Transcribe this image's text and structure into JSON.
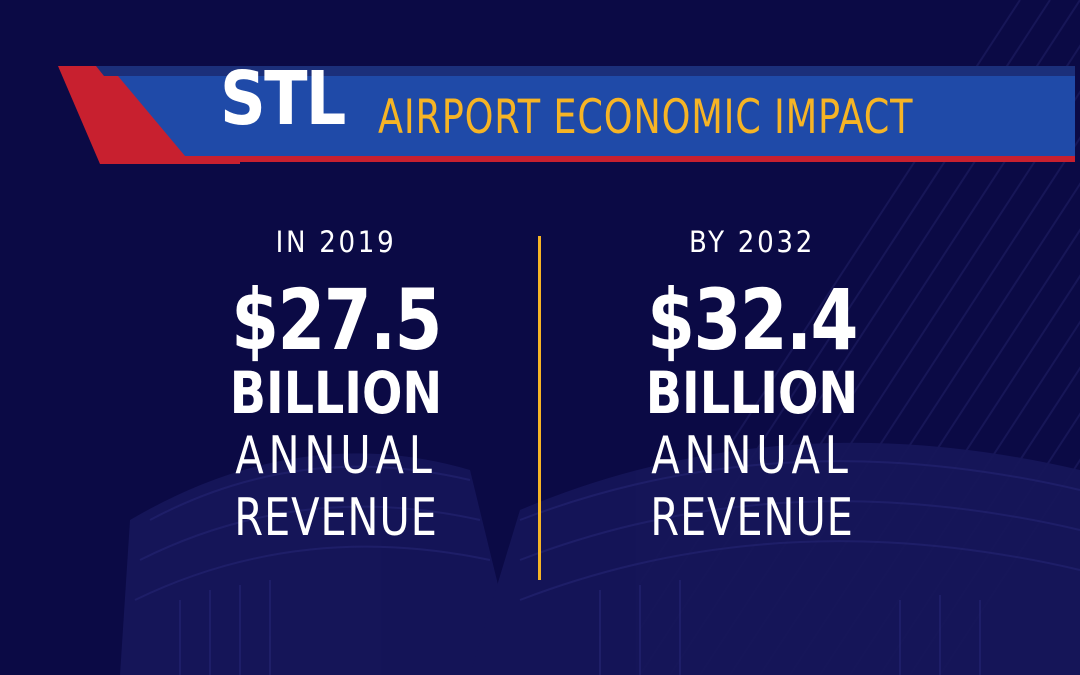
{
  "title": {
    "brand": "STL",
    "subtitle": "AIRPORT ECONOMIC IMPACT"
  },
  "stats": [
    {
      "period": "IN 2019",
      "amount": "$27.5",
      "unit": "BILLION",
      "desc_line1": "ANNUAL",
      "desc_line2": "REVENUE"
    },
    {
      "period": "BY 2032",
      "amount": "$32.4",
      "unit": "BILLION",
      "desc_line1": "ANNUAL",
      "desc_line2": "REVENUE"
    }
  ],
  "colors": {
    "background": "#0b0a45",
    "accent_gold": "#f6b425",
    "banner_blue": "#1f4aa8",
    "banner_red": "#c8202f",
    "text": "#ffffff"
  }
}
